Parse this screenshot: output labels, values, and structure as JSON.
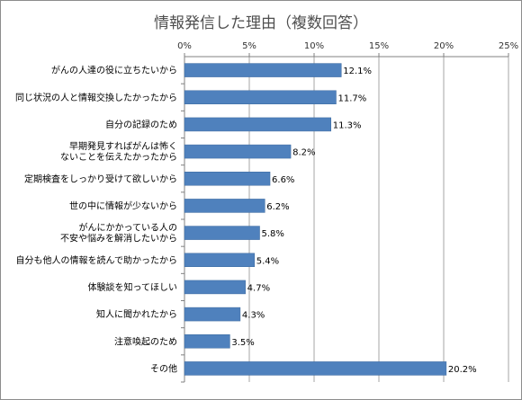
{
  "chart_data": {
    "type": "bar",
    "orientation": "horizontal",
    "title": "情報発信した理由（複数回答）",
    "categories": [
      [
        "がんの人達の役に立ちたいから"
      ],
      [
        "同じ状況の人と情報交換したかったから"
      ],
      [
        "自分の記録のため"
      ],
      [
        "早期発見すればがんは怖く",
        "ないことを伝えたかったから"
      ],
      [
        "定期検査をしっかり受けて欲しいから"
      ],
      [
        "世の中に情報が少ないから"
      ],
      [
        "がんにかかっている人の",
        "不安や悩みを解消したいから"
      ],
      [
        "自分も他人の情報を読んで助かったから"
      ],
      [
        "体験談を知ってほしい"
      ],
      [
        "知人に聞かれたから"
      ],
      [
        "注意喚起のため"
      ],
      [
        "その他"
      ]
    ],
    "values": [
      12.1,
      11.7,
      11.3,
      8.2,
      6.6,
      6.2,
      5.8,
      5.4,
      4.7,
      4.3,
      3.5,
      20.2
    ],
    "data_labels": [
      "12.1%",
      "11.7%",
      "11.3%",
      "8.2%",
      "6.6%",
      "6.2%",
      "5.8%",
      "5.4%",
      "4.7%",
      "4.3%",
      "3.5%",
      "20.2%"
    ],
    "xlim": [
      0,
      25
    ],
    "xticks": [
      "0%",
      "5%",
      "10%",
      "15%",
      "20%",
      "25%"
    ],
    "xlabel": "",
    "ylabel": "",
    "grid": "vertical",
    "legend": "none",
    "colors": {
      "bar": "#4f81bd",
      "bar_edge": "#3d6a9f",
      "grid": "#a6a6a6",
      "axis": "#808080"
    }
  }
}
